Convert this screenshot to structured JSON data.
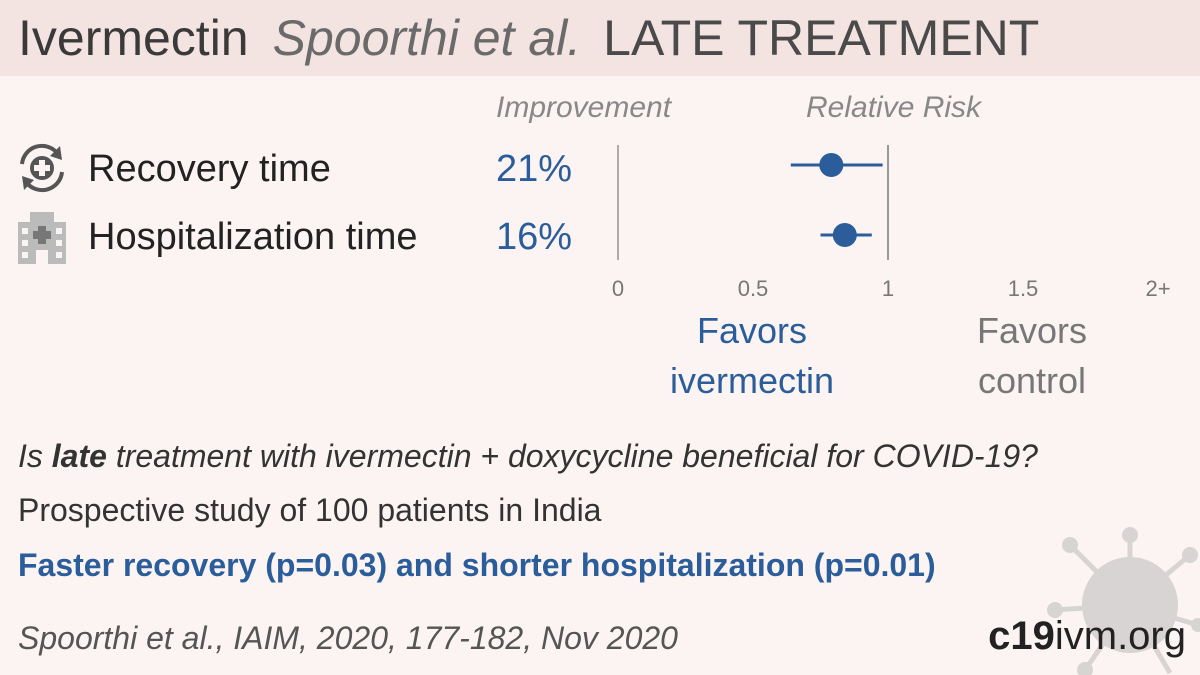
{
  "header": {
    "drug": "Ivermectin",
    "authors": "Spoorthi et al.",
    "stage": "LATE TREATMENT"
  },
  "columns": {
    "improvement": "Improvement",
    "relative_risk": "Relative Risk"
  },
  "colors": {
    "accent": "#2a5d9a",
    "background": "#fbf4f3",
    "header_bg": "#f3e4e1",
    "muted": "#888888"
  },
  "rows": [
    {
      "label": "Recovery time",
      "improvement": "21%",
      "icon": "recovery-icon"
    },
    {
      "label": "Hospitalization time",
      "improvement": "16%",
      "icon": "hospital-icon"
    }
  ],
  "chart_data": {
    "type": "forest",
    "x_ticks": [
      "0",
      "0.5",
      "1",
      "1.5",
      "2+"
    ],
    "x_range": [
      0,
      2
    ],
    "reference_line": 1,
    "points": [
      {
        "label": "Recovery time",
        "rr": 0.79,
        "ci": [
          0.64,
          0.98
        ]
      },
      {
        "label": "Hospitalization time",
        "rr": 0.84,
        "ci": [
          0.75,
          0.94
        ]
      }
    ],
    "favors_left": [
      "Favors",
      "ivermectin"
    ],
    "favors_right": [
      "Favors",
      "control"
    ]
  },
  "summary": {
    "question_pre": "Is ",
    "question_bold": "late",
    "question_post": " treatment with ivermectin + doxycycline beneficial for COVID-19?",
    "study": "Prospective study of 100 patients in India",
    "result": "Faster recovery (p=0.03) and shorter hospitalization (p=0.01)",
    "citation": "Spoorthi et al., IAIM, 2020, 177-182, Nov 2020"
  },
  "brand": {
    "bold": "c19",
    "rest": "ivm.org"
  }
}
